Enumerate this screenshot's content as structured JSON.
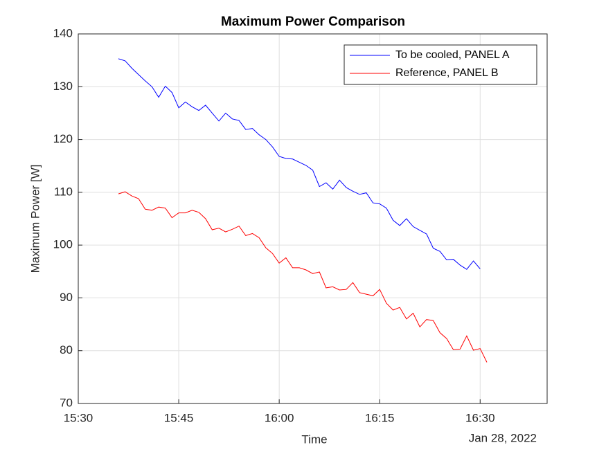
{
  "chart_data": {
    "type": "line",
    "title": "Maximum Power Comparison",
    "xlabel": "Time",
    "ylabel": "Maximum Power [W]",
    "date_label": "Jan 28, 2022",
    "x": [
      "15:36",
      "15:37",
      "15:38",
      "15:39",
      "15:40",
      "15:41",
      "15:42",
      "15:43",
      "15:44",
      "15:45",
      "15:46",
      "15:47",
      "15:48",
      "15:49",
      "15:50",
      "15:51",
      "15:52",
      "15:53",
      "15:54",
      "15:55",
      "15:56",
      "15:57",
      "15:58",
      "15:59",
      "16:00",
      "16:01",
      "16:02",
      "16:03",
      "16:04",
      "16:05",
      "16:06",
      "16:07",
      "16:08",
      "16:09",
      "16:10",
      "16:11",
      "16:12",
      "16:13",
      "16:14",
      "16:15",
      "16:16",
      "16:17",
      "16:18",
      "16:19",
      "16:20",
      "16:21",
      "16:22",
      "16:23",
      "16:24",
      "16:25",
      "16:26",
      "16:27",
      "16:28",
      "16:29",
      "16:30",
      "16:31"
    ],
    "series": [
      {
        "name": "To be cooled, PANEL A",
        "color": "#0000ff",
        "values": [
          135.3,
          134.9,
          133.5,
          132.3,
          131.1,
          130,
          128,
          130.1,
          128.9,
          126,
          127.1,
          126.2,
          125.5,
          126.5,
          125,
          123.5,
          125,
          123.9,
          123.6,
          121.9,
          122.1,
          120.9,
          120,
          118.6,
          116.8,
          116.4,
          116.3,
          115.7,
          115.1,
          114.2,
          111.1,
          111.8,
          110.6,
          112.3,
          110.9,
          110.2,
          109.6,
          109.9,
          108,
          107.8,
          107,
          104.7,
          103.7,
          105,
          103.5,
          102.8,
          102.1,
          99.4,
          98.8,
          97.2,
          97.3,
          96.2,
          95.4,
          97,
          95.5,
          null
        ]
      },
      {
        "name": "Reference, PANEL B",
        "color": "#ff0000",
        "values": [
          109.7,
          110.1,
          109.3,
          108.8,
          106.8,
          106.6,
          107.2,
          107,
          105.2,
          106.1,
          106.1,
          106.6,
          106.2,
          105,
          102.9,
          103.2,
          102.5,
          103,
          103.6,
          101.8,
          102.2,
          101.4,
          99.5,
          98.4,
          96.6,
          97.6,
          95.7,
          95.7,
          95.3,
          94.6,
          94.9,
          91.9,
          92.1,
          91.5,
          91.6,
          92.9,
          91,
          90.7,
          90.4,
          91.6,
          89,
          87.7,
          88.2,
          86,
          87.1,
          84.5,
          85.9,
          85.7,
          83.4,
          82.3,
          80.2,
          80.3,
          82.8,
          80.1,
          80.4,
          77.8
        ]
      }
    ],
    "xlim": [
      "15:30",
      "16:40"
    ],
    "xticks": [
      "15:30",
      "15:45",
      "16:00",
      "16:15",
      "16:30"
    ],
    "ylim": [
      70,
      140
    ],
    "yticks": [
      70,
      80,
      90,
      100,
      110,
      120,
      130,
      140
    ],
    "grid": true,
    "legend": "northeast"
  }
}
